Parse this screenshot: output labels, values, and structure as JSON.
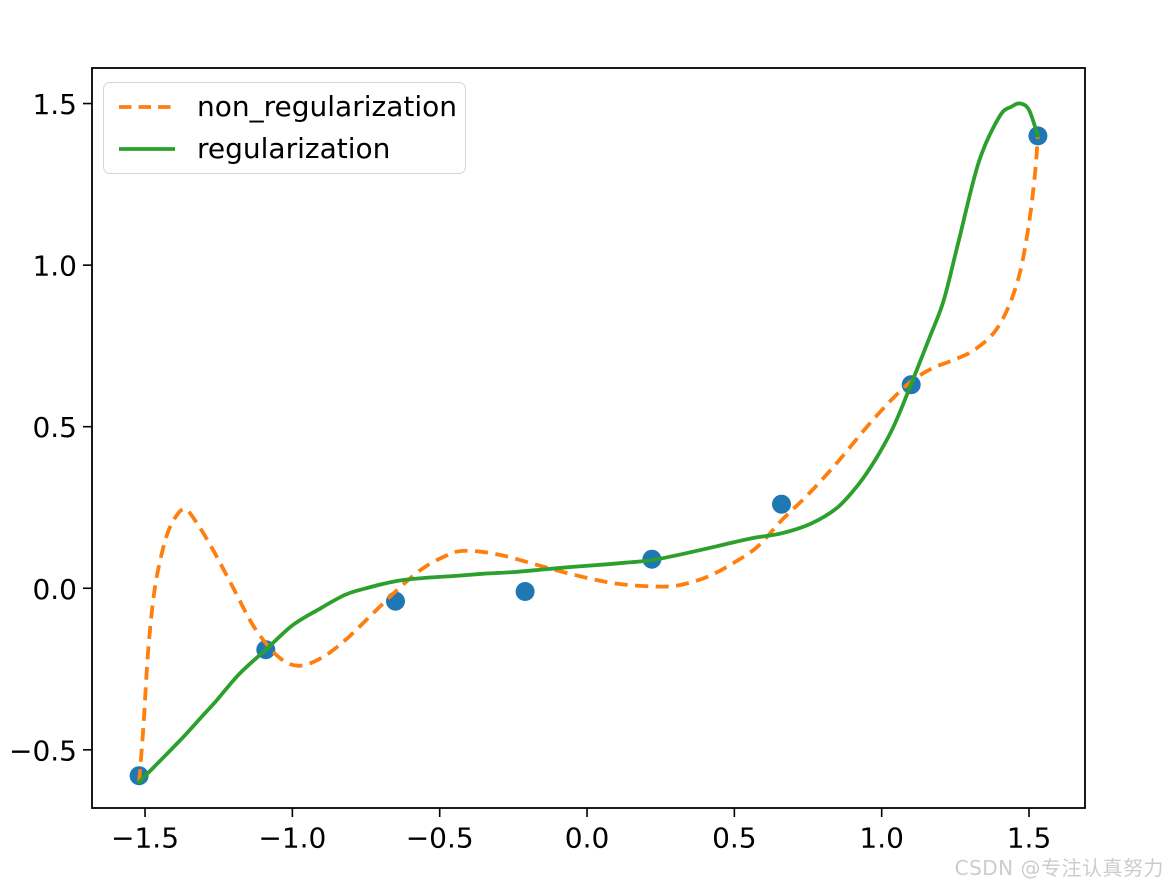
{
  "figure": {
    "background": "#ffffff",
    "watermark": "CSDN @专注认真努力",
    "watermark_color": "#cccccc"
  },
  "legend": {
    "entries": [
      {
        "label": "non_regularization",
        "color": "#ff7f0e",
        "style": "dashed"
      },
      {
        "label": "regularization",
        "color": "#2ca02c",
        "style": "solid"
      }
    ]
  },
  "chart_data": {
    "type": "line",
    "title": "",
    "xlabel": "",
    "ylabel": "",
    "grid": false,
    "legend_position": "upper left",
    "xlim": [
      -1.68,
      1.69
    ],
    "ylim": [
      -0.68,
      1.61
    ],
    "xticks": {
      "values": [
        -1.5,
        -1.0,
        -0.5,
        0.0,
        0.5,
        1.0,
        1.5
      ],
      "labels": [
        "−1.5",
        "−1.0",
        "−0.5",
        "0.0",
        "0.5",
        "1.0",
        "1.5"
      ]
    },
    "yticks": {
      "values": [
        1.5,
        1.0,
        0.5,
        0.0,
        -0.5
      ],
      "labels": [
        "1.5",
        "1.0",
        "0.5",
        "0.0",
        "−0.5"
      ]
    },
    "scatter": {
      "name": "data-points",
      "color": "#1f77b4",
      "marker_radius": 9.5,
      "points": [
        [
          -1.52,
          -0.58
        ],
        [
          -1.09,
          -0.19
        ],
        [
          -0.65,
          -0.04
        ],
        [
          -0.21,
          -0.01
        ],
        [
          0.22,
          0.09
        ],
        [
          0.66,
          0.26
        ],
        [
          1.1,
          0.63
        ],
        [
          1.53,
          1.4
        ]
      ]
    },
    "series": [
      {
        "name": "non_regularization",
        "color": "#ff7f0e",
        "style": "dashed",
        "line_width": 3.8,
        "points": [
          [
            -1.52,
            -0.6
          ],
          [
            -1.505,
            -0.42
          ],
          [
            -1.49,
            -0.2
          ],
          [
            -1.47,
            -0.02
          ],
          [
            -1.445,
            0.1
          ],
          [
            -1.415,
            0.19
          ],
          [
            -1.37,
            0.245
          ],
          [
            -1.33,
            0.21
          ],
          [
            -1.27,
            0.12
          ],
          [
            -1.2,
            0.0
          ],
          [
            -1.13,
            -0.12
          ],
          [
            -1.05,
            -0.21
          ],
          [
            -0.98,
            -0.24
          ],
          [
            -0.9,
            -0.215
          ],
          [
            -0.82,
            -0.16
          ],
          [
            -0.74,
            -0.09
          ],
          [
            -0.65,
            -0.01
          ],
          [
            -0.56,
            0.06
          ],
          [
            -0.48,
            0.1
          ],
          [
            -0.43,
            0.115
          ],
          [
            -0.36,
            0.113
          ],
          [
            -0.28,
            0.1
          ],
          [
            -0.18,
            0.075
          ],
          [
            -0.08,
            0.05
          ],
          [
            0.02,
            0.028
          ],
          [
            0.12,
            0.012
          ],
          [
            0.26,
            0.005
          ],
          [
            0.34,
            0.015
          ],
          [
            0.42,
            0.04
          ],
          [
            0.5,
            0.08
          ],
          [
            0.58,
            0.13
          ],
          [
            0.66,
            0.21
          ],
          [
            0.75,
            0.29
          ],
          [
            0.85,
            0.39
          ],
          [
            0.95,
            0.5
          ],
          [
            1.03,
            0.58
          ],
          [
            1.1,
            0.64
          ],
          [
            1.17,
            0.68
          ],
          [
            1.24,
            0.705
          ],
          [
            1.31,
            0.735
          ],
          [
            1.38,
            0.79
          ],
          [
            1.43,
            0.87
          ],
          [
            1.47,
            0.98
          ],
          [
            1.5,
            1.13
          ],
          [
            1.52,
            1.28
          ],
          [
            1.53,
            1.4
          ]
        ]
      },
      {
        "name": "regularization",
        "color": "#2ca02c",
        "style": "solid",
        "line_width": 3.8,
        "points": [
          [
            -1.52,
            -0.6
          ],
          [
            -1.45,
            -0.535
          ],
          [
            -1.38,
            -0.47
          ],
          [
            -1.31,
            -0.4
          ],
          [
            -1.26,
            -0.35
          ],
          [
            -1.18,
            -0.265
          ],
          [
            -1.09,
            -0.19
          ],
          [
            -1.0,
            -0.115
          ],
          [
            -0.91,
            -0.065
          ],
          [
            -0.82,
            -0.02
          ],
          [
            -0.75,
            0.0
          ],
          [
            -0.65,
            0.022
          ],
          [
            -0.55,
            0.032
          ],
          [
            -0.45,
            0.038
          ],
          [
            -0.35,
            0.045
          ],
          [
            -0.25,
            0.05
          ],
          [
            -0.15,
            0.058
          ],
          [
            -0.05,
            0.066
          ],
          [
            0.05,
            0.073
          ],
          [
            0.13,
            0.079
          ],
          [
            0.22,
            0.087
          ],
          [
            0.32,
            0.105
          ],
          [
            0.44,
            0.13
          ],
          [
            0.56,
            0.155
          ],
          [
            0.66,
            0.17
          ],
          [
            0.76,
            0.2
          ],
          [
            0.85,
            0.25
          ],
          [
            0.92,
            0.32
          ],
          [
            0.98,
            0.4
          ],
          [
            1.04,
            0.5
          ],
          [
            1.1,
            0.632
          ],
          [
            1.16,
            0.77
          ],
          [
            1.21,
            0.89
          ],
          [
            1.26,
            1.07
          ],
          [
            1.33,
            1.32
          ],
          [
            1.4,
            1.46
          ],
          [
            1.44,
            1.49
          ],
          [
            1.47,
            1.5
          ],
          [
            1.5,
            1.48
          ],
          [
            1.53,
            1.4
          ]
        ]
      }
    ]
  }
}
